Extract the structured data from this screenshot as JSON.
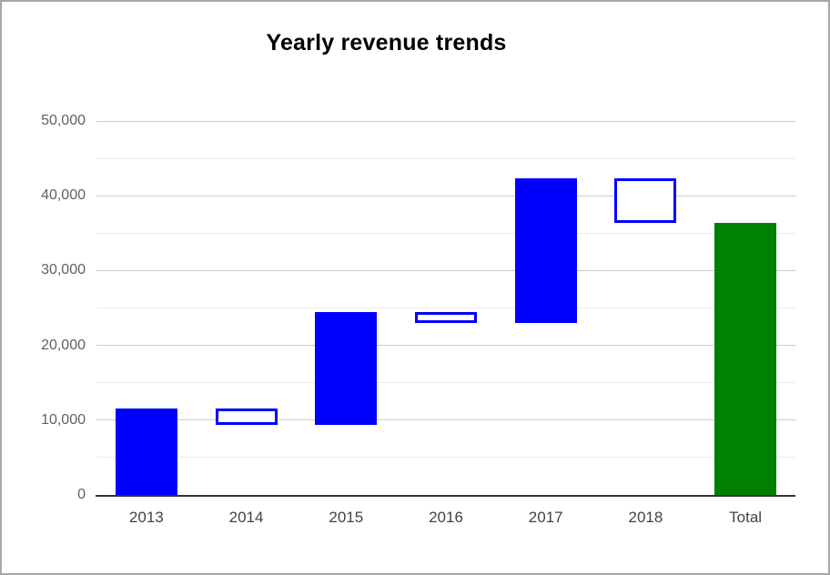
{
  "title": "Yearly revenue trends",
  "chart_data": {
    "type": "bar",
    "subtype": "waterfall",
    "title": "Yearly revenue trends",
    "categories": [
      "2013",
      "2014",
      "2015",
      "2016",
      "2017",
      "2018",
      "Total"
    ],
    "bars": [
      {
        "label": "2013",
        "start": 0,
        "end": 11500,
        "delta": 11500,
        "style": "filled",
        "color": "#0000ff"
      },
      {
        "label": "2014",
        "start": 11500,
        "end": 9400,
        "delta": -2100,
        "style": "hollow",
        "color": "#0000ff"
      },
      {
        "label": "2015",
        "start": 9400,
        "end": 24500,
        "delta": 15100,
        "style": "filled",
        "color": "#0000ff"
      },
      {
        "label": "2016",
        "start": 24500,
        "end": 23000,
        "delta": -1500,
        "style": "hollow",
        "color": "#0000ff"
      },
      {
        "label": "2017",
        "start": 23000,
        "end": 42300,
        "delta": 19300,
        "style": "filled",
        "color": "#0000ff"
      },
      {
        "label": "2018",
        "start": 42300,
        "end": 36400,
        "delta": -5900,
        "style": "hollow",
        "color": "#0000ff"
      },
      {
        "label": "Total",
        "start": 0,
        "end": 36400,
        "delta": 36400,
        "style": "filled",
        "color": "#008000"
      }
    ],
    "y_axis": {
      "min": 0,
      "max": 50000,
      "major_step": 10000,
      "minor_step": 5000,
      "ticks": [
        {
          "value": 0,
          "label": "0"
        },
        {
          "value": 10000,
          "label": "10,000"
        },
        {
          "value": 20000,
          "label": "20,000"
        },
        {
          "value": 30000,
          "label": "30,000"
        },
        {
          "value": 40000,
          "label": "40,000"
        },
        {
          "value": 50000,
          "label": "50,000"
        }
      ]
    },
    "xlabel": "",
    "ylabel": "",
    "legend": "none",
    "grid": true,
    "colors": {
      "increase_bar": "#0000ff",
      "total_bar": "#008000",
      "hollow_fill": "#ffffff",
      "major_gridline": "#cccccc",
      "minor_gridline": "#ebebeb",
      "axis_line": "#333333",
      "y_tick_text": "#616161",
      "x_tick_text": "#424242"
    }
  }
}
